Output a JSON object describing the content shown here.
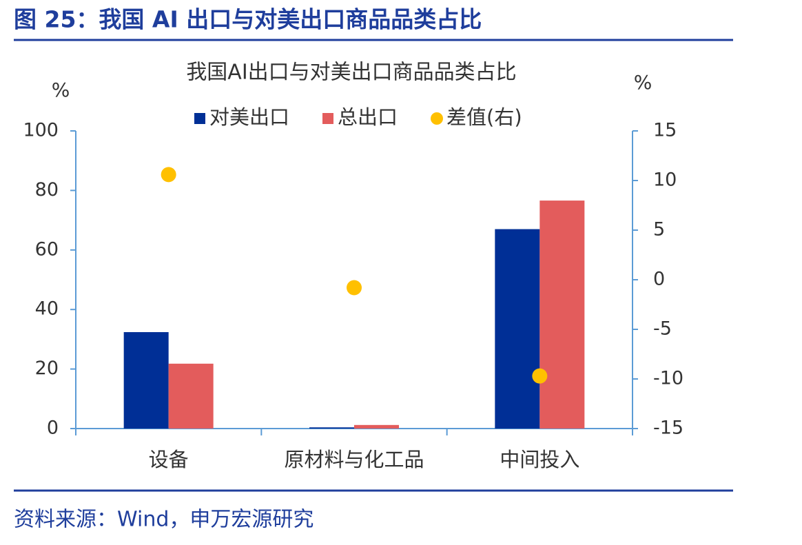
{
  "header": {
    "title": "图 25：我国 AI 出口与对美出口商品品类占比"
  },
  "chart_data": {
    "type": "bar",
    "title": "我国AI出口与对美出口商品品类占比",
    "y_label": "%",
    "y2_label": "%",
    "categories": [
      "设备",
      "原材料与化工品",
      "中间投入"
    ],
    "series": [
      {
        "name": "对美出口",
        "color": "#002f96",
        "values": [
          32.4,
          0.4,
          67.0
        ]
      },
      {
        "name": "总出口",
        "color": "#e35c5c",
        "values": [
          21.8,
          1.2,
          76.6
        ]
      },
      {
        "name": "差值(右)",
        "color": "#ffc000",
        "axis": "y2",
        "type": "scatter",
        "values": [
          10.6,
          -0.8,
          -9.7
        ]
      }
    ],
    "ylim": [
      0,
      100
    ],
    "yticks": [
      0,
      20,
      40,
      60,
      80,
      100
    ],
    "y2lim": [
      -15,
      15
    ],
    "y2ticks": [
      -15,
      -10,
      -5,
      0,
      5,
      10,
      15
    ],
    "grid": false,
    "legend": "top"
  },
  "footer": {
    "source": "资料来源：Wind，申万宏源研究"
  }
}
